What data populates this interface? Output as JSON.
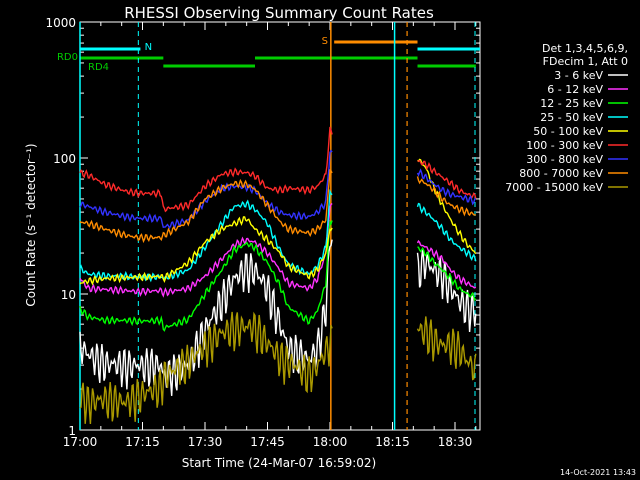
{
  "chart_data": {
    "type": "line",
    "title": "RHESSI Observing Summary Count Rates",
    "xlabel": "Start Time (24-Mar-07 16:59:02)",
    "ylabel": "Count Rate (s⁻¹ detector⁻¹)",
    "y_scale": "log",
    "ylim": [
      1,
      1000
    ],
    "xlim_minutes_after_1659": [
      1,
      97
    ],
    "x_ticks": [
      "17:00",
      "17:15",
      "17:30",
      "17:45",
      "18:00",
      "18:15",
      "18:30"
    ],
    "x_tick_minutes": [
      1,
      16,
      31,
      46,
      61,
      76,
      91
    ],
    "y_ticks": [
      "1",
      "10",
      "100",
      "1000"
    ],
    "y_tick_values": [
      1,
      10,
      100,
      1000
    ],
    "legend": {
      "position": "right",
      "header": [
        "Det 1,3,4,5,6,9,",
        "FDecim 1, Att 0"
      ]
    },
    "gaps_minutes": [
      [
        61.5,
        82
      ]
    ],
    "series": [
      {
        "name": "3 - 6 keV",
        "color": "#ffffff",
        "points": [
          [
            1,
            4.2
          ],
          [
            3,
            3.6
          ],
          [
            7,
            3.1
          ],
          [
            12,
            3.0
          ],
          [
            15,
            3.0
          ],
          [
            20.5,
            3.0
          ],
          [
            21,
            2.5
          ],
          [
            27,
            3.0
          ],
          [
            31,
            5.5
          ],
          [
            35,
            9.0
          ],
          [
            38,
            13
          ],
          [
            41,
            15.5
          ],
          [
            43,
            15
          ],
          [
            46,
            11
          ],
          [
            49,
            6
          ],
          [
            51,
            4
          ],
          [
            56,
            3.3
          ],
          [
            58,
            4
          ],
          [
            60,
            8
          ],
          [
            61,
            25
          ],
          [
            82,
            15
          ],
          [
            84,
            17.5
          ],
          [
            86,
            15
          ],
          [
            88,
            14
          ],
          [
            90,
            11
          ],
          [
            92,
            9
          ],
          [
            94,
            8
          ],
          [
            96,
            7.5
          ]
        ]
      },
      {
        "name": "6 - 12 keV",
        "color": "#ff33ff",
        "points": [
          [
            1,
            13
          ],
          [
            3,
            11
          ],
          [
            7,
            10.8
          ],
          [
            12,
            10.6
          ],
          [
            15,
            10.4
          ],
          [
            20.5,
            10.6
          ],
          [
            21,
            10.2
          ],
          [
            27,
            11
          ],
          [
            31,
            13.5
          ],
          [
            35,
            18
          ],
          [
            38,
            23
          ],
          [
            41,
            25
          ],
          [
            43,
            24
          ],
          [
            46,
            20
          ],
          [
            49,
            15
          ],
          [
            51,
            12
          ],
          [
            56,
            11
          ],
          [
            58,
            13
          ],
          [
            60,
            20
          ],
          [
            61,
            45
          ],
          [
            82,
            24
          ],
          [
            84,
            22
          ],
          [
            86,
            20
          ],
          [
            88,
            18
          ],
          [
            90,
            15
          ],
          [
            92,
            13
          ],
          [
            94,
            12
          ],
          [
            96,
            11
          ]
        ]
      },
      {
        "name": "12 - 25 keV",
        "color": "#00ff00",
        "points": [
          [
            1,
            7.8
          ],
          [
            3,
            6.8
          ],
          [
            7,
            6.4
          ],
          [
            12,
            6.4
          ],
          [
            15,
            6.3
          ],
          [
            20.5,
            6.4
          ],
          [
            21,
            5.6
          ],
          [
            27,
            6.5
          ],
          [
            31,
            10
          ],
          [
            35,
            15
          ],
          [
            38,
            21
          ],
          [
            41,
            23.5
          ],
          [
            43,
            22
          ],
          [
            46,
            17
          ],
          [
            49,
            11.5
          ],
          [
            51,
            8
          ],
          [
            56,
            6.3
          ],
          [
            58,
            7.5
          ],
          [
            60,
            12
          ],
          [
            61,
            35
          ],
          [
            82,
            22
          ],
          [
            84,
            20
          ],
          [
            86,
            17
          ],
          [
            88,
            15
          ],
          [
            90,
            13
          ],
          [
            92,
            11
          ],
          [
            94,
            10
          ],
          [
            96,
            9.5
          ]
        ]
      },
      {
        "name": "25 - 50 keV",
        "color": "#00ffff",
        "points": [
          [
            1,
            15.5
          ],
          [
            3,
            14
          ],
          [
            7,
            13.6
          ],
          [
            12,
            13.5
          ],
          [
            15,
            13.3
          ],
          [
            20.5,
            13.4
          ],
          [
            21,
            13
          ],
          [
            27,
            15
          ],
          [
            31,
            22
          ],
          [
            35,
            33
          ],
          [
            38,
            44
          ],
          [
            41,
            46
          ],
          [
            43,
            42
          ],
          [
            46,
            33
          ],
          [
            49,
            21
          ],
          [
            51,
            16.5
          ],
          [
            56,
            14
          ],
          [
            58,
            16
          ],
          [
            60,
            22
          ],
          [
            61,
            55
          ],
          [
            82,
            45
          ],
          [
            84,
            40
          ],
          [
            86,
            35
          ],
          [
            88,
            30
          ],
          [
            90,
            25
          ],
          [
            92,
            22
          ],
          [
            94,
            20
          ],
          [
            96,
            18
          ]
        ]
      },
      {
        "name": "50 - 100 keV",
        "color": "#ffff00",
        "points": [
          [
            1,
            12
          ],
          [
            3,
            12.5
          ],
          [
            7,
            13
          ],
          [
            12,
            13.2
          ],
          [
            15,
            13.3
          ],
          [
            20.5,
            13.5
          ],
          [
            21,
            13
          ],
          [
            27,
            17
          ],
          [
            31,
            24
          ],
          [
            35,
            30
          ],
          [
            38,
            33
          ],
          [
            41,
            36
          ],
          [
            43,
            30
          ],
          [
            46,
            25
          ],
          [
            49,
            20
          ],
          [
            51,
            16
          ],
          [
            56,
            13.5
          ],
          [
            58,
            15
          ],
          [
            60,
            20
          ],
          [
            61,
            30
          ],
          [
            82,
            100
          ],
          [
            84,
            85
          ],
          [
            86,
            60
          ],
          [
            88,
            45
          ],
          [
            90,
            35
          ],
          [
            92,
            28
          ],
          [
            94,
            23
          ],
          [
            96,
            20
          ]
        ]
      },
      {
        "name": "100 - 300 keV",
        "color": "#ff2a2a",
        "points": [
          [
            1,
            78
          ],
          [
            3,
            75
          ],
          [
            7,
            64
          ],
          [
            12,
            57
          ],
          [
            15,
            55
          ],
          [
            20.5,
            55
          ],
          [
            21,
            42
          ],
          [
            27,
            45
          ],
          [
            31,
            62
          ],
          [
            35,
            76
          ],
          [
            38,
            79
          ],
          [
            41,
            78
          ],
          [
            43,
            74
          ],
          [
            46,
            60
          ],
          [
            49,
            58
          ],
          [
            51,
            60
          ],
          [
            56,
            58
          ],
          [
            58,
            62
          ],
          [
            60,
            75
          ],
          [
            61,
            160
          ],
          [
            82,
            95
          ],
          [
            84,
            90
          ],
          [
            86,
            80
          ],
          [
            88,
            72
          ],
          [
            90,
            65
          ],
          [
            92,
            58
          ],
          [
            94,
            54
          ],
          [
            96,
            52
          ]
        ]
      },
      {
        "name": "300 - 800 keV",
        "color": "#3333ff",
        "points": [
          [
            1,
            46
          ],
          [
            3,
            44
          ],
          [
            7,
            40
          ],
          [
            12,
            37
          ],
          [
            15,
            36
          ],
          [
            20.5,
            36
          ],
          [
            21,
            31
          ],
          [
            27,
            35
          ],
          [
            31,
            48
          ],
          [
            35,
            60
          ],
          [
            38,
            62
          ],
          [
            41,
            61
          ],
          [
            43,
            58
          ],
          [
            46,
            46
          ],
          [
            49,
            40
          ],
          [
            51,
            38
          ],
          [
            56,
            37
          ],
          [
            58,
            40
          ],
          [
            60,
            47
          ],
          [
            61,
            110
          ],
          [
            82,
            80
          ],
          [
            84,
            72
          ],
          [
            86,
            64
          ],
          [
            88,
            58
          ],
          [
            90,
            54
          ],
          [
            92,
            52
          ],
          [
            94,
            50
          ],
          [
            96,
            48
          ]
        ]
      },
      {
        "name": "800 - 7000 keV",
        "color": "#ff8c00",
        "points": [
          [
            1,
            34
          ],
          [
            3,
            33
          ],
          [
            7,
            30
          ],
          [
            12,
            27
          ],
          [
            15,
            26
          ],
          [
            20.5,
            26
          ],
          [
            21,
            27
          ],
          [
            27,
            34
          ],
          [
            31,
            50
          ],
          [
            35,
            60
          ],
          [
            38,
            65
          ],
          [
            41,
            64
          ],
          [
            43,
            59
          ],
          [
            46,
            45
          ],
          [
            49,
            34
          ],
          [
            51,
            30
          ],
          [
            56,
            28
          ],
          [
            58,
            30
          ],
          [
            60,
            35
          ],
          [
            61,
            80
          ],
          [
            82,
            70
          ],
          [
            84,
            65
          ],
          [
            86,
            58
          ],
          [
            88,
            50
          ],
          [
            90,
            45
          ],
          [
            92,
            42
          ],
          [
            94,
            40
          ],
          [
            96,
            38
          ]
        ]
      },
      {
        "name": "7000 - 15000 keV",
        "color": "#aa9900",
        "points": [
          [
            1,
            1.8
          ],
          [
            3,
            1.6
          ],
          [
            7,
            1.7
          ],
          [
            12,
            1.6
          ],
          [
            15,
            1.8
          ],
          [
            20.5,
            2.1
          ],
          [
            21,
            2.5
          ],
          [
            27,
            3.2
          ],
          [
            31,
            4.2
          ],
          [
            35,
            5.2
          ],
          [
            38,
            5.6
          ],
          [
            41,
            5.8
          ],
          [
            43,
            5.7
          ],
          [
            46,
            4.4
          ],
          [
            49,
            3.4
          ],
          [
            51,
            3.2
          ],
          [
            56,
            2.6
          ],
          [
            58,
            3.0
          ],
          [
            60,
            3.8
          ],
          [
            61,
            4.5
          ],
          [
            82,
            5.5
          ],
          [
            84,
            5.3
          ],
          [
            86,
            4.6
          ],
          [
            88,
            4.2
          ],
          [
            90,
            4.3
          ],
          [
            92,
            4.0
          ],
          [
            94,
            3.2
          ],
          [
            96,
            2.8
          ]
        ]
      }
    ],
    "flags": [
      {
        "label": "RD0",
        "color": "#00cc00",
        "value_level": 1
      },
      {
        "label": "RD4",
        "color": "#00cc00",
        "value_level": 1
      },
      {
        "label": "N",
        "color": "#00ffff"
      },
      {
        "label": "S",
        "color": "#ff8c00"
      }
    ],
    "timestamp": "14-Oct-2021 13:43"
  }
}
